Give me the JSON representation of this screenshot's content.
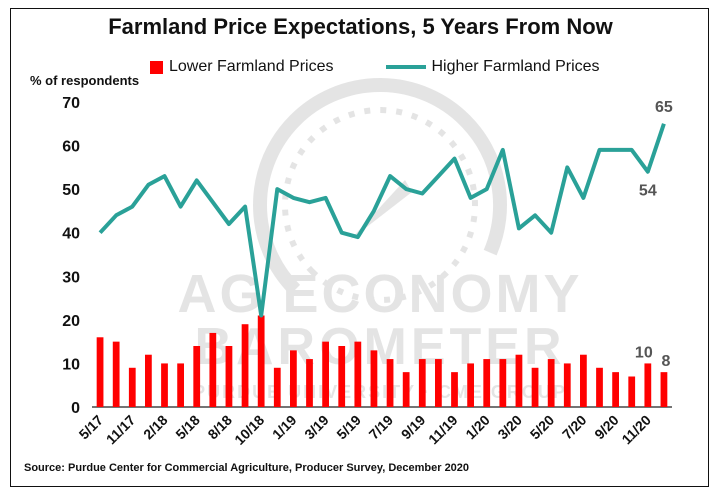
{
  "chart_data": {
    "type": "bar+line",
    "title": "Farmland Price Expectations, 5 Years From Now",
    "ylabel": "% of respondents",
    "ylim": [
      0,
      70
    ],
    "yticks": [
      0,
      10,
      20,
      30,
      40,
      50,
      60,
      70
    ],
    "grid": false,
    "legend_placement": "top",
    "x_tick_labels": [
      "5/17",
      "11/17",
      "2/18",
      "5/18",
      "8/18",
      "10/18",
      "1/19",
      "3/19",
      "5/19",
      "7/19",
      "9/19",
      "11/19",
      "1/20",
      "3/20",
      "5/20",
      "7/20",
      "9/20",
      "11/20"
    ],
    "x_tick_positions": [
      0,
      2,
      4,
      6,
      8,
      10,
      12,
      14,
      16,
      18,
      20,
      22,
      24,
      26,
      28,
      30,
      32,
      34
    ],
    "series": [
      {
        "name": "Lower Farmland Prices",
        "kind": "bar",
        "color": "#ff0000",
        "values": [
          16,
          15,
          9,
          12,
          10,
          10,
          14,
          17,
          14,
          19,
          21,
          9,
          13,
          11,
          15,
          14,
          15,
          13,
          11,
          8,
          11,
          11,
          8,
          10,
          11,
          11,
          12,
          9,
          11,
          10,
          12,
          9,
          8,
          7,
          10,
          8
        ]
      },
      {
        "name": "Higher Farmland Prices",
        "kind": "line",
        "color": "#2aa198",
        "values": [
          40,
          44,
          46,
          51,
          53,
          46,
          52,
          47,
          42,
          46,
          21,
          50,
          48,
          47,
          48,
          40,
          39,
          45,
          53,
          50,
          49,
          53,
          57,
          48,
          50,
          59,
          41,
          44,
          40,
          55,
          48,
          59,
          59,
          59,
          54,
          65
        ]
      }
    ],
    "annotations": [
      {
        "text": "65",
        "series": "Higher Farmland Prices",
        "index": 35
      },
      {
        "text": "54",
        "series": "Higher Farmland Prices",
        "index": 34
      },
      {
        "text": "10",
        "series": "Lower Farmland Prices",
        "index": 34
      },
      {
        "text": "8",
        "series": "Lower Farmland Prices",
        "index": 35
      }
    ]
  },
  "legend": {
    "lower_label": "Lower Farmland Prices",
    "higher_label": "Higher Farmland Prices"
  },
  "watermark": {
    "line1": "AG ECONOMY",
    "line2": "BAROMETER",
    "line3": "PURDUE UNIVERSITY · CME GROUP"
  },
  "source": "Source: Purdue Center for Commercial Agriculture, Producer Survey, December 2020"
}
